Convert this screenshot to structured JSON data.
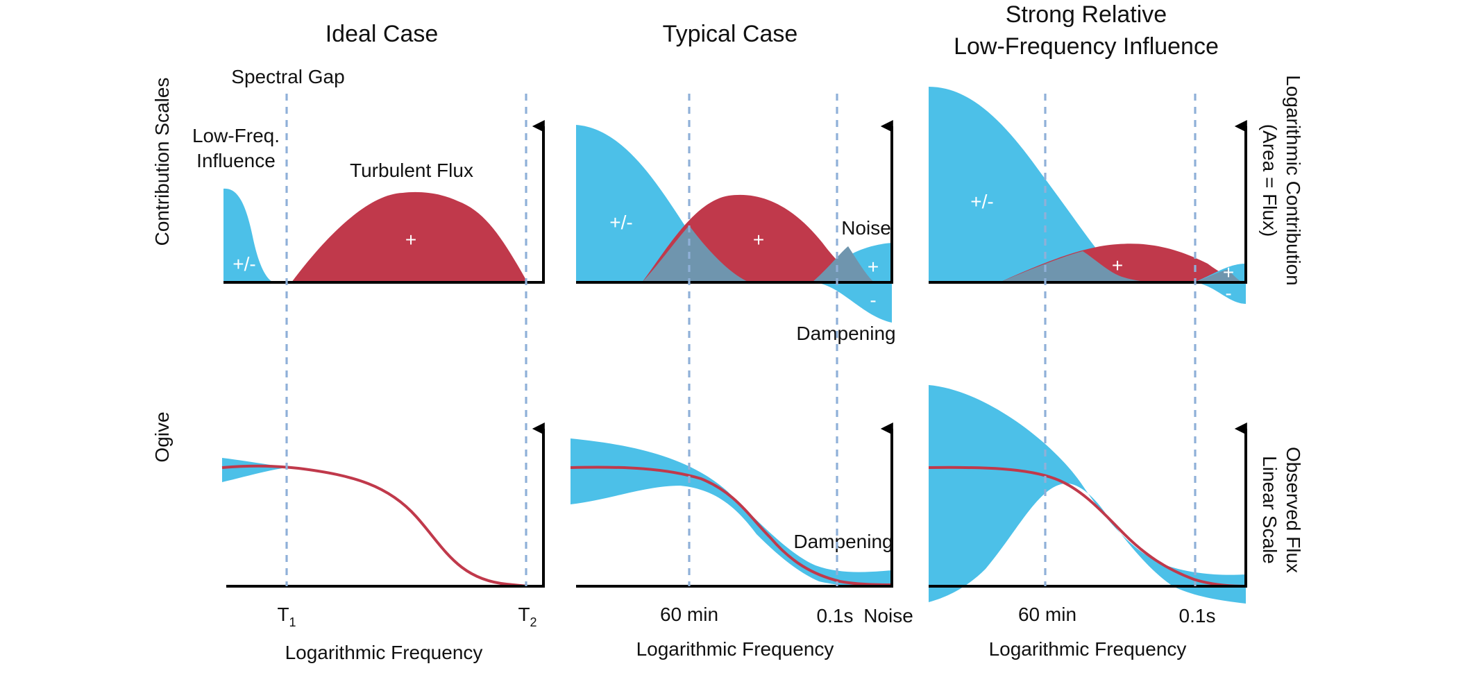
{
  "colors": {
    "low_freq_blue": "#4cc0e8",
    "flux_red": "#c0394b",
    "overlap": "#6f95ae",
    "gap_line": "#8fb0d8",
    "axis": "#000000"
  },
  "left_axis_labels": {
    "top": "Contribution Scales",
    "bottom": "Ogive"
  },
  "right_axis_labels": {
    "top_line1": "Logarithmic Contribution",
    "top_line2": "(Area = Flux)",
    "bottom_line1": "Observed Flux",
    "bottom_line2": "Linear Scale"
  },
  "panels": {
    "ideal": {
      "title": "Ideal Case",
      "spectral_gap": "Spectral Gap",
      "low_freq_line1": "Low-Freq.",
      "low_freq_line2": "Influence",
      "turbulent_flux": "Turbulent Flux",
      "low_sign": "+/-",
      "flux_sign": "+",
      "t1": "T",
      "t1_sub": "1",
      "t2": "T",
      "t2_sub": "2",
      "xlabel": "Logarithmic Frequency"
    },
    "typical": {
      "title": "Typical Case",
      "low_sign": "+/-",
      "flux_sign": "+",
      "noise_plus": "+",
      "damp_minus": "-",
      "noise": "Noise",
      "dampening_top": "Dampening",
      "dampening_bottom": "Dampening",
      "tick_60": "60 min",
      "tick_01": "0.1s",
      "noise_tick": "Noise",
      "xlabel": "Logarithmic Frequency"
    },
    "strong": {
      "title_line1": "Strong Relative",
      "title_line2": "Low-Frequency Influence",
      "low_sign": "+/-",
      "flux_sign": "+",
      "noise_plus": "+",
      "damp_minus": "-",
      "tick_60": "60 min",
      "tick_01": "0.1s",
      "xlabel": "Logarithmic Frequency"
    }
  }
}
